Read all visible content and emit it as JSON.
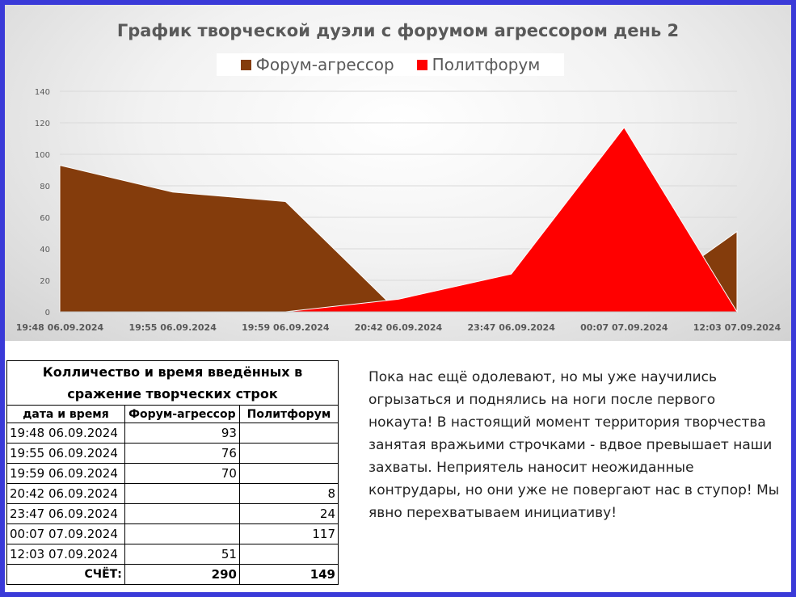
{
  "chart_data": {
    "type": "area",
    "title": "График творческой дуэли с форумом агрессором день 2",
    "x": [
      "19:48 06.09.2024",
      "19:55 06.09.2024",
      "19:59 06.09.2024",
      "20:42 06.09.2024",
      "23:47 06.09.2024",
      "00:07 07.09.2024",
      "12:03 07.09.2024"
    ],
    "series": [
      {
        "name": "Форум-агрессор",
        "values": [
          93,
          76,
          70,
          0,
          0,
          0,
          51
        ],
        "color": "#843c0c"
      },
      {
        "name": "Политфорум",
        "values": [
          0,
          0,
          0,
          8,
          24,
          117,
          0
        ],
        "color": "#ff0000"
      }
    ],
    "ylim": [
      0,
      140
    ],
    "yticks": [
      0,
      20,
      40,
      60,
      80,
      100,
      120,
      140
    ],
    "grid": true,
    "legend_position": "top"
  },
  "table": {
    "caption": "Колличество и время введённых в сражение творческих строк",
    "headers": [
      "дата и время",
      "Форум-агрессор",
      "Политфорум"
    ],
    "rows": [
      [
        "19:48 06.09.2024",
        "93",
        ""
      ],
      [
        "19:55 06.09.2024",
        "76",
        ""
      ],
      [
        "19:59 06.09.2024",
        "70",
        ""
      ],
      [
        "20:42 06.09.2024",
        "",
        "8"
      ],
      [
        "23:47 06.09.2024",
        "",
        "24"
      ],
      [
        "00:07 07.09.2024",
        "",
        "117"
      ],
      [
        "12:03 07.09.2024",
        "51",
        ""
      ]
    ],
    "total": [
      "СЧЁТ:",
      "290",
      "149"
    ]
  },
  "comment": "Пока нас ещё одолевают, но мы уже научились огрызаться и поднялись на ноги после первого нокаута! В настоящий момент территория творчества занятая вражьими строчками -  вдвое превышает наши захваты. Неприятель наносит неожиданные контрудары, но они уже не повергают нас в ступор! Мы явно перехватываем инициативу!"
}
